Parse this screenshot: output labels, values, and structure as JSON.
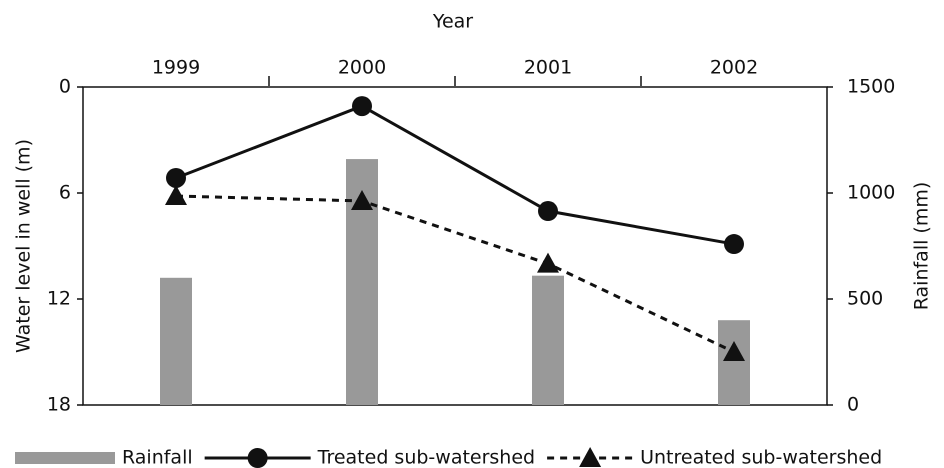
{
  "chart_data": {
    "type": "combo",
    "x_label": "Year",
    "y_label": "Water level in well (m)",
    "y2_label": "Rainfall (mm)",
    "categories": [
      "1999",
      "2000",
      "2001",
      "2002"
    ],
    "ylim": [
      18,
      0
    ],
    "yticks": [
      0,
      6,
      12,
      18
    ],
    "y2lim": [
      0,
      1500
    ],
    "y2ticks": [
      0,
      500,
      1000,
      1500
    ],
    "series": [
      {
        "name": "Rainfall",
        "type": "bar",
        "axis": "y2",
        "color": "#999999",
        "values": [
          600,
          1160,
          610,
          400
        ]
      },
      {
        "name": "Treated sub-watershed",
        "type": "line",
        "color": "#111111",
        "marker": "circle",
        "dashed": false,
        "values": [
          5.15,
          1.08,
          7.02,
          8.89
        ]
      },
      {
        "name": "Untreated sub-watershed",
        "type": "line",
        "color": "#111111",
        "marker": "triangle",
        "dashed": true,
        "values": [
          6.17,
          6.45,
          10.0,
          15.0
        ]
      }
    ]
  }
}
